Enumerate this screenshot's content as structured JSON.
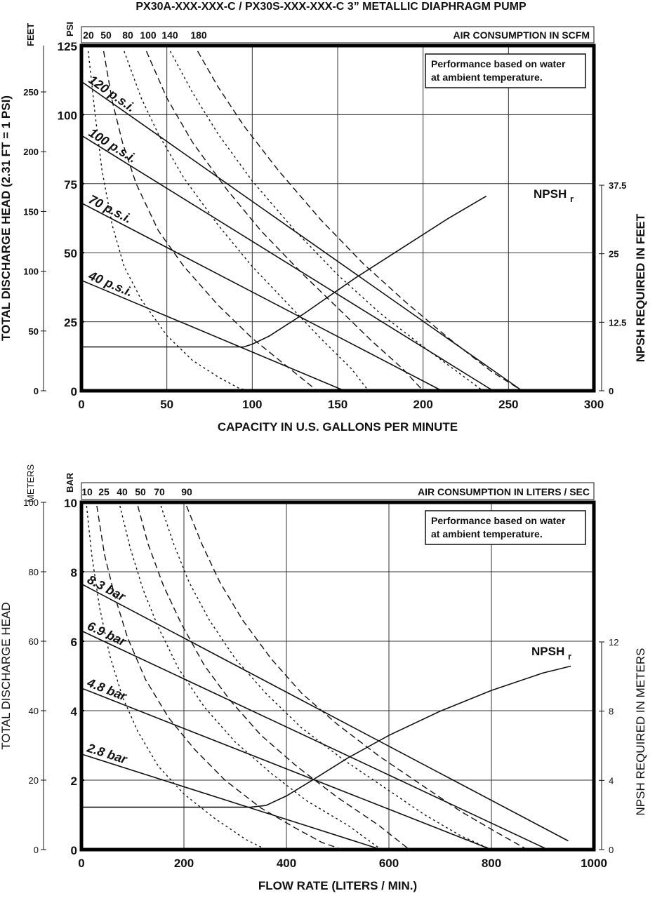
{
  "title": "PX30A-XXX-XXX-C / PX30S-XXX-XXX-C   3” METALLIC DIAPHRAGM PUMP",
  "chart_data": [
    {
      "type": "line",
      "xlabel": "CAPACITY IN U.S. GALLONS PER MINUTE",
      "x_ticks": [
        "0",
        "50",
        "100",
        "150",
        "200",
        "250",
        "300"
      ],
      "xlim": [
        0,
        300
      ],
      "y_primary_unit": "PSI",
      "y_primary_ticks": [
        "0",
        "25",
        "50",
        "75",
        "100",
        "125"
      ],
      "ylim": [
        0,
        125
      ],
      "y_secondary_unit": "FEET",
      "y_secondary_label": "TOTAL DISCHARGE HEAD (2.31 FT = 1 PSI)",
      "y_secondary_ticks": [
        "0",
        "50",
        "100",
        "150",
        "200",
        "250"
      ],
      "y_right_label": "NPSH REQUIRED IN FEET",
      "y_right_ticks": [
        "0",
        "12.5",
        "25",
        "37.5"
      ],
      "air_header": "AIR CONSUMPTION IN SCFM",
      "air_ticks": [
        "20",
        "50",
        "80",
        "100",
        "140",
        "180"
      ],
      "note_lines": [
        "Performance based on water",
        "at ambient temperature."
      ],
      "npsh_label": "NPSH",
      "npsh_sub": "r",
      "pressure_series": [
        {
          "name": "120 p.s.i.",
          "x": [
            0,
            258
          ],
          "y": [
            112,
            0
          ]
        },
        {
          "name": "100 p.s.i.",
          "x": [
            0,
            241
          ],
          "y": [
            92.5,
            0
          ]
        },
        {
          "name": "70 p.s.i.",
          "x": [
            0,
            211
          ],
          "y": [
            68,
            0
          ]
        },
        {
          "name": "40 p.s.i.",
          "x": [
            0,
            154
          ],
          "y": [
            40,
            0
          ]
        }
      ],
      "air_series": [
        {
          "value": "20",
          "x": [
            4,
            8,
            12,
            18,
            25,
            35,
            50,
            65,
            80,
            92,
            98
          ],
          "y": [
            123,
            100,
            80,
            60,
            45,
            33,
            20,
            11,
            5,
            1,
            0
          ]
        },
        {
          "value": "50",
          "x": [
            13,
            18,
            24,
            32,
            45,
            60,
            80,
            100,
            120,
            138
          ],
          "y": [
            123,
            105,
            90,
            75,
            58,
            45,
            31,
            19,
            9,
            0
          ]
        },
        {
          "value": "80",
          "x": [
            25,
            35,
            45,
            60,
            80,
            100,
            120,
            140,
            158,
            168
          ],
          "y": [
            123,
            106,
            93,
            77,
            60,
            45,
            32,
            19,
            8,
            0
          ]
        },
        {
          "value": "100",
          "x": [
            38,
            50,
            65,
            85,
            105,
            130,
            150,
            170,
            188,
            200
          ],
          "y": [
            123,
            106,
            90,
            73,
            58,
            42,
            30,
            18,
            8,
            0
          ]
        },
        {
          "value": "140",
          "x": [
            52,
            65,
            80,
            100,
            125,
            150,
            175,
            200,
            222,
            235
          ],
          "y": [
            123,
            108,
            93,
            76,
            58,
            42,
            28,
            16,
            6,
            0
          ]
        },
        {
          "value": "180",
          "x": [
            68,
            80,
            95,
            115,
            140,
            165,
            190,
            215,
            240,
            258
          ],
          "y": [
            123,
            110,
            96,
            80,
            62,
            46,
            32,
            19,
            7,
            0
          ]
        }
      ],
      "npsh_curve": {
        "x": [
          0,
          95,
          100,
          110,
          130,
          160,
          190,
          215,
          237
        ],
        "y_ft": [
          8,
          8,
          8.5,
          10,
          14,
          20.5,
          26.5,
          31.5,
          35.5
        ]
      }
    },
    {
      "type": "line",
      "xlabel": "FLOW RATE (LITERS / MIN.)",
      "x_ticks": [
        "0",
        "200",
        "400",
        "600",
        "800",
        "1000"
      ],
      "xlim": [
        0,
        1000
      ],
      "y_primary_unit": "BAR",
      "y_primary_ticks": [
        "0",
        "2",
        "4",
        "6",
        "8",
        "10"
      ],
      "ylim": [
        0,
        10
      ],
      "y_secondary_unit": "METERS",
      "y_secondary_label": "TOTAL DISCHARGE HEAD",
      "y_secondary_ticks": [
        "0",
        "20",
        "40",
        "60",
        "80",
        "100"
      ],
      "y_right_label": "NPSH REQUIRED IN METERS",
      "y_right_ticks": [
        "0",
        "4",
        "8",
        "12"
      ],
      "air_header": "AIR CONSUMPTION IN LITERS / SEC",
      "air_ticks": [
        "10",
        "25",
        "40",
        "50",
        "70",
        "90"
      ],
      "note_lines": [
        "Performance based on water",
        "at ambient temperature."
      ],
      "npsh_label": "NPSH",
      "npsh_sub": "r",
      "pressure_series": [
        {
          "name": "8.3 bar",
          "x": [
            0,
            950
          ],
          "y": [
            7.65,
            0.25
          ]
        },
        {
          "name": "6.9 bar",
          "x": [
            0,
            910
          ],
          "y": [
            6.3,
            0
          ]
        },
        {
          "name": "4.8 bar",
          "x": [
            0,
            800
          ],
          "y": [
            4.65,
            0
          ]
        },
        {
          "name": "2.8 bar",
          "x": [
            0,
            585
          ],
          "y": [
            2.75,
            0
          ]
        }
      ],
      "air_series": [
        {
          "value": "10",
          "x": [
            10,
            20,
            35,
            55,
            80,
            110,
            150,
            200,
            260,
            320,
            360
          ],
          "y": [
            9.9,
            8.5,
            7,
            5.6,
            4.4,
            3.4,
            2.4,
            1.6,
            0.9,
            0.3,
            0
          ]
        },
        {
          "value": "25",
          "x": [
            30,
            45,
            65,
            90,
            125,
            170,
            220,
            280,
            350,
            420,
            470,
            510
          ],
          "y": [
            9.9,
            8.5,
            7.3,
            6.1,
            4.9,
            3.8,
            2.9,
            2,
            1.2,
            0.6,
            0.2,
            0
          ]
        },
        {
          "value": "40",
          "x": [
            75,
            95,
            120,
            150,
            190,
            240,
            300,
            370,
            440,
            520,
            585
          ],
          "y": [
            9.9,
            8.7,
            7.5,
            6.4,
            5.2,
            4.1,
            3.1,
            2.2,
            1.4,
            0.7,
            0
          ]
        },
        {
          "value": "50",
          "x": [
            110,
            130,
            160,
            195,
            240,
            290,
            350,
            420,
            500,
            580,
            640
          ],
          "y": [
            9.9,
            8.8,
            7.6,
            6.5,
            5.3,
            4.3,
            3.3,
            2.4,
            1.5,
            0.7,
            0
          ]
        },
        {
          "value": "70",
          "x": [
            155,
            180,
            210,
            250,
            300,
            360,
            430,
            510,
            590,
            670,
            740,
            800
          ],
          "y": [
            9.9,
            8.8,
            7.7,
            6.6,
            5.5,
            4.5,
            3.5,
            2.6,
            1.8,
            1,
            0.4,
            0
          ]
        },
        {
          "value": "90",
          "x": [
            205,
            235,
            270,
            315,
            370,
            430,
            500,
            580,
            660,
            740,
            810,
            870
          ],
          "y": [
            9.9,
            8.8,
            7.7,
            6.6,
            5.5,
            4.5,
            3.6,
            2.7,
            1.9,
            1.1,
            0.5,
            0
          ]
        }
      ],
      "npsh_curve": {
        "x": [
          0,
          330,
          360,
          400,
          450,
          520,
          600,
          700,
          800,
          900,
          955
        ],
        "y_m": [
          2.45,
          2.45,
          2.55,
          3.1,
          4,
          5.3,
          6.6,
          8.0,
          9.2,
          10.2,
          10.6
        ]
      }
    }
  ]
}
